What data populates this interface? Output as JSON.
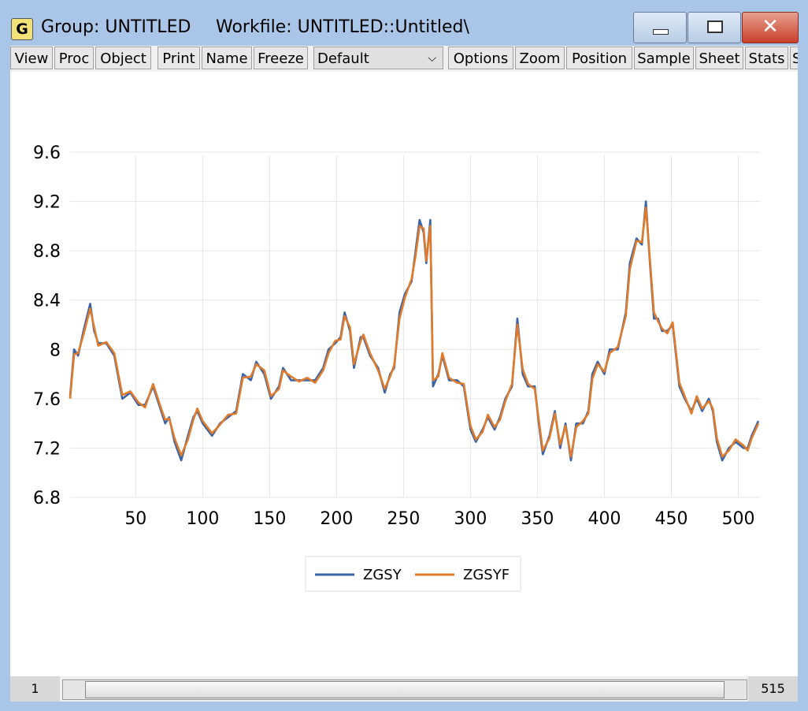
{
  "window": {
    "icon": "G",
    "title": "Group: UNTITLED",
    "workfile": "Workfile: UNTITLED::Untitled\\"
  },
  "toolbar": {
    "buttons": [
      "View",
      "Proc",
      "Object",
      "Print",
      "Name",
      "Freeze"
    ],
    "dropdown": "Default",
    "buttons2": [
      "Options",
      "Zoom",
      "Position",
      "Sample",
      "Sheet",
      "Stats",
      "S"
    ]
  },
  "chart_data": {
    "type": "line",
    "x": [
      1,
      4,
      7,
      11,
      16,
      19,
      22,
      28,
      34,
      40,
      46,
      52,
      57,
      63,
      69,
      72,
      75,
      79,
      84,
      89,
      93,
      96,
      100,
      107,
      113,
      119,
      125,
      130,
      136,
      140,
      146,
      151,
      157,
      160,
      166,
      172,
      178,
      184,
      190,
      194,
      199,
      203,
      206,
      210,
      213,
      218,
      220,
      225,
      231,
      236,
      240,
      243,
      247,
      251,
      256,
      259,
      262,
      265,
      267,
      270,
      272,
      276,
      279,
      284,
      290,
      295,
      300,
      304,
      309,
      313,
      318,
      322,
      326,
      331,
      335,
      339,
      343,
      348,
      351,
      354,
      359,
      363,
      367,
      371,
      375,
      379,
      384,
      388,
      391,
      395,
      400,
      404,
      410,
      416,
      419,
      424,
      428,
      431,
      434,
      437,
      440,
      443,
      447,
      451,
      456,
      460,
      465,
      469,
      473,
      478,
      481,
      484,
      488,
      493,
      498,
      504,
      507,
      510,
      515
    ],
    "series": [
      {
        "name": "ZGSY",
        "color": "#3b64a6",
        "values": [
          7.62,
          8.0,
          7.95,
          8.15,
          8.37,
          8.15,
          8.05,
          8.05,
          7.95,
          7.6,
          7.65,
          7.55,
          7.55,
          7.7,
          7.5,
          7.4,
          7.45,
          7.25,
          7.1,
          7.3,
          7.45,
          7.5,
          7.4,
          7.3,
          7.4,
          7.45,
          7.5,
          7.8,
          7.75,
          7.9,
          7.8,
          7.6,
          7.7,
          7.85,
          7.75,
          7.75,
          7.75,
          7.75,
          7.85,
          8.0,
          8.05,
          8.1,
          8.3,
          8.15,
          7.85,
          8.1,
          8.1,
          7.95,
          7.85,
          7.65,
          7.8,
          7.85,
          8.3,
          8.45,
          8.55,
          8.8,
          9.05,
          8.95,
          8.7,
          9.05,
          7.7,
          7.8,
          7.95,
          7.75,
          7.75,
          7.7,
          7.35,
          7.25,
          7.35,
          7.45,
          7.35,
          7.45,
          7.6,
          7.7,
          8.25,
          7.8,
          7.7,
          7.7,
          7.4,
          7.15,
          7.3,
          7.5,
          7.2,
          7.4,
          7.1,
          7.4,
          7.4,
          7.5,
          7.8,
          7.9,
          7.8,
          8.0,
          8.0,
          8.3,
          8.7,
          8.9,
          8.85,
          9.2,
          8.7,
          8.25,
          8.25,
          8.15,
          8.15,
          8.2,
          7.7,
          7.6,
          7.5,
          7.6,
          7.5,
          7.6,
          7.5,
          7.25,
          7.1,
          7.2,
          7.25,
          7.2,
          7.2,
          7.3,
          7.42
        ]
      },
      {
        "name": "ZGSYF",
        "color": "#e07b2b",
        "values": [
          7.6,
          7.96,
          7.97,
          8.12,
          8.33,
          8.18,
          8.03,
          8.06,
          7.97,
          7.63,
          7.66,
          7.57,
          7.53,
          7.72,
          7.52,
          7.43,
          7.44,
          7.28,
          7.14,
          7.27,
          7.43,
          7.52,
          7.42,
          7.32,
          7.39,
          7.47,
          7.48,
          7.77,
          7.78,
          7.88,
          7.83,
          7.62,
          7.68,
          7.83,
          7.78,
          7.74,
          7.77,
          7.73,
          7.83,
          7.97,
          8.07,
          8.08,
          8.27,
          8.18,
          7.88,
          8.07,
          8.12,
          7.97,
          7.83,
          7.68,
          7.78,
          7.87,
          8.25,
          8.42,
          8.57,
          8.76,
          9.0,
          8.98,
          8.72,
          9.0,
          7.75,
          7.78,
          7.97,
          7.77,
          7.73,
          7.72,
          7.38,
          7.27,
          7.33,
          7.47,
          7.37,
          7.43,
          7.58,
          7.72,
          8.2,
          7.84,
          7.72,
          7.68,
          7.43,
          7.18,
          7.28,
          7.48,
          7.23,
          7.38,
          7.13,
          7.37,
          7.42,
          7.48,
          7.76,
          7.88,
          7.82,
          7.97,
          8.02,
          8.27,
          8.65,
          8.88,
          8.87,
          9.15,
          8.73,
          8.3,
          8.23,
          8.17,
          8.13,
          8.22,
          7.73,
          7.62,
          7.48,
          7.62,
          7.52,
          7.58,
          7.52,
          7.28,
          7.13,
          7.18,
          7.27,
          7.22,
          7.18,
          7.28,
          7.4
        ]
      }
    ],
    "xlim": [
      1,
      515
    ],
    "xticks": [
      50,
      100,
      150,
      200,
      250,
      300,
      350,
      400,
      450,
      500
    ],
    "ylim": [
      6.8,
      9.6
    ],
    "yticks": [
      6.8,
      7.2,
      7.6,
      8.0,
      8.4,
      8.8,
      9.2,
      9.6
    ],
    "grid": true
  },
  "scrollbar": {
    "start": "1",
    "end": "515"
  }
}
